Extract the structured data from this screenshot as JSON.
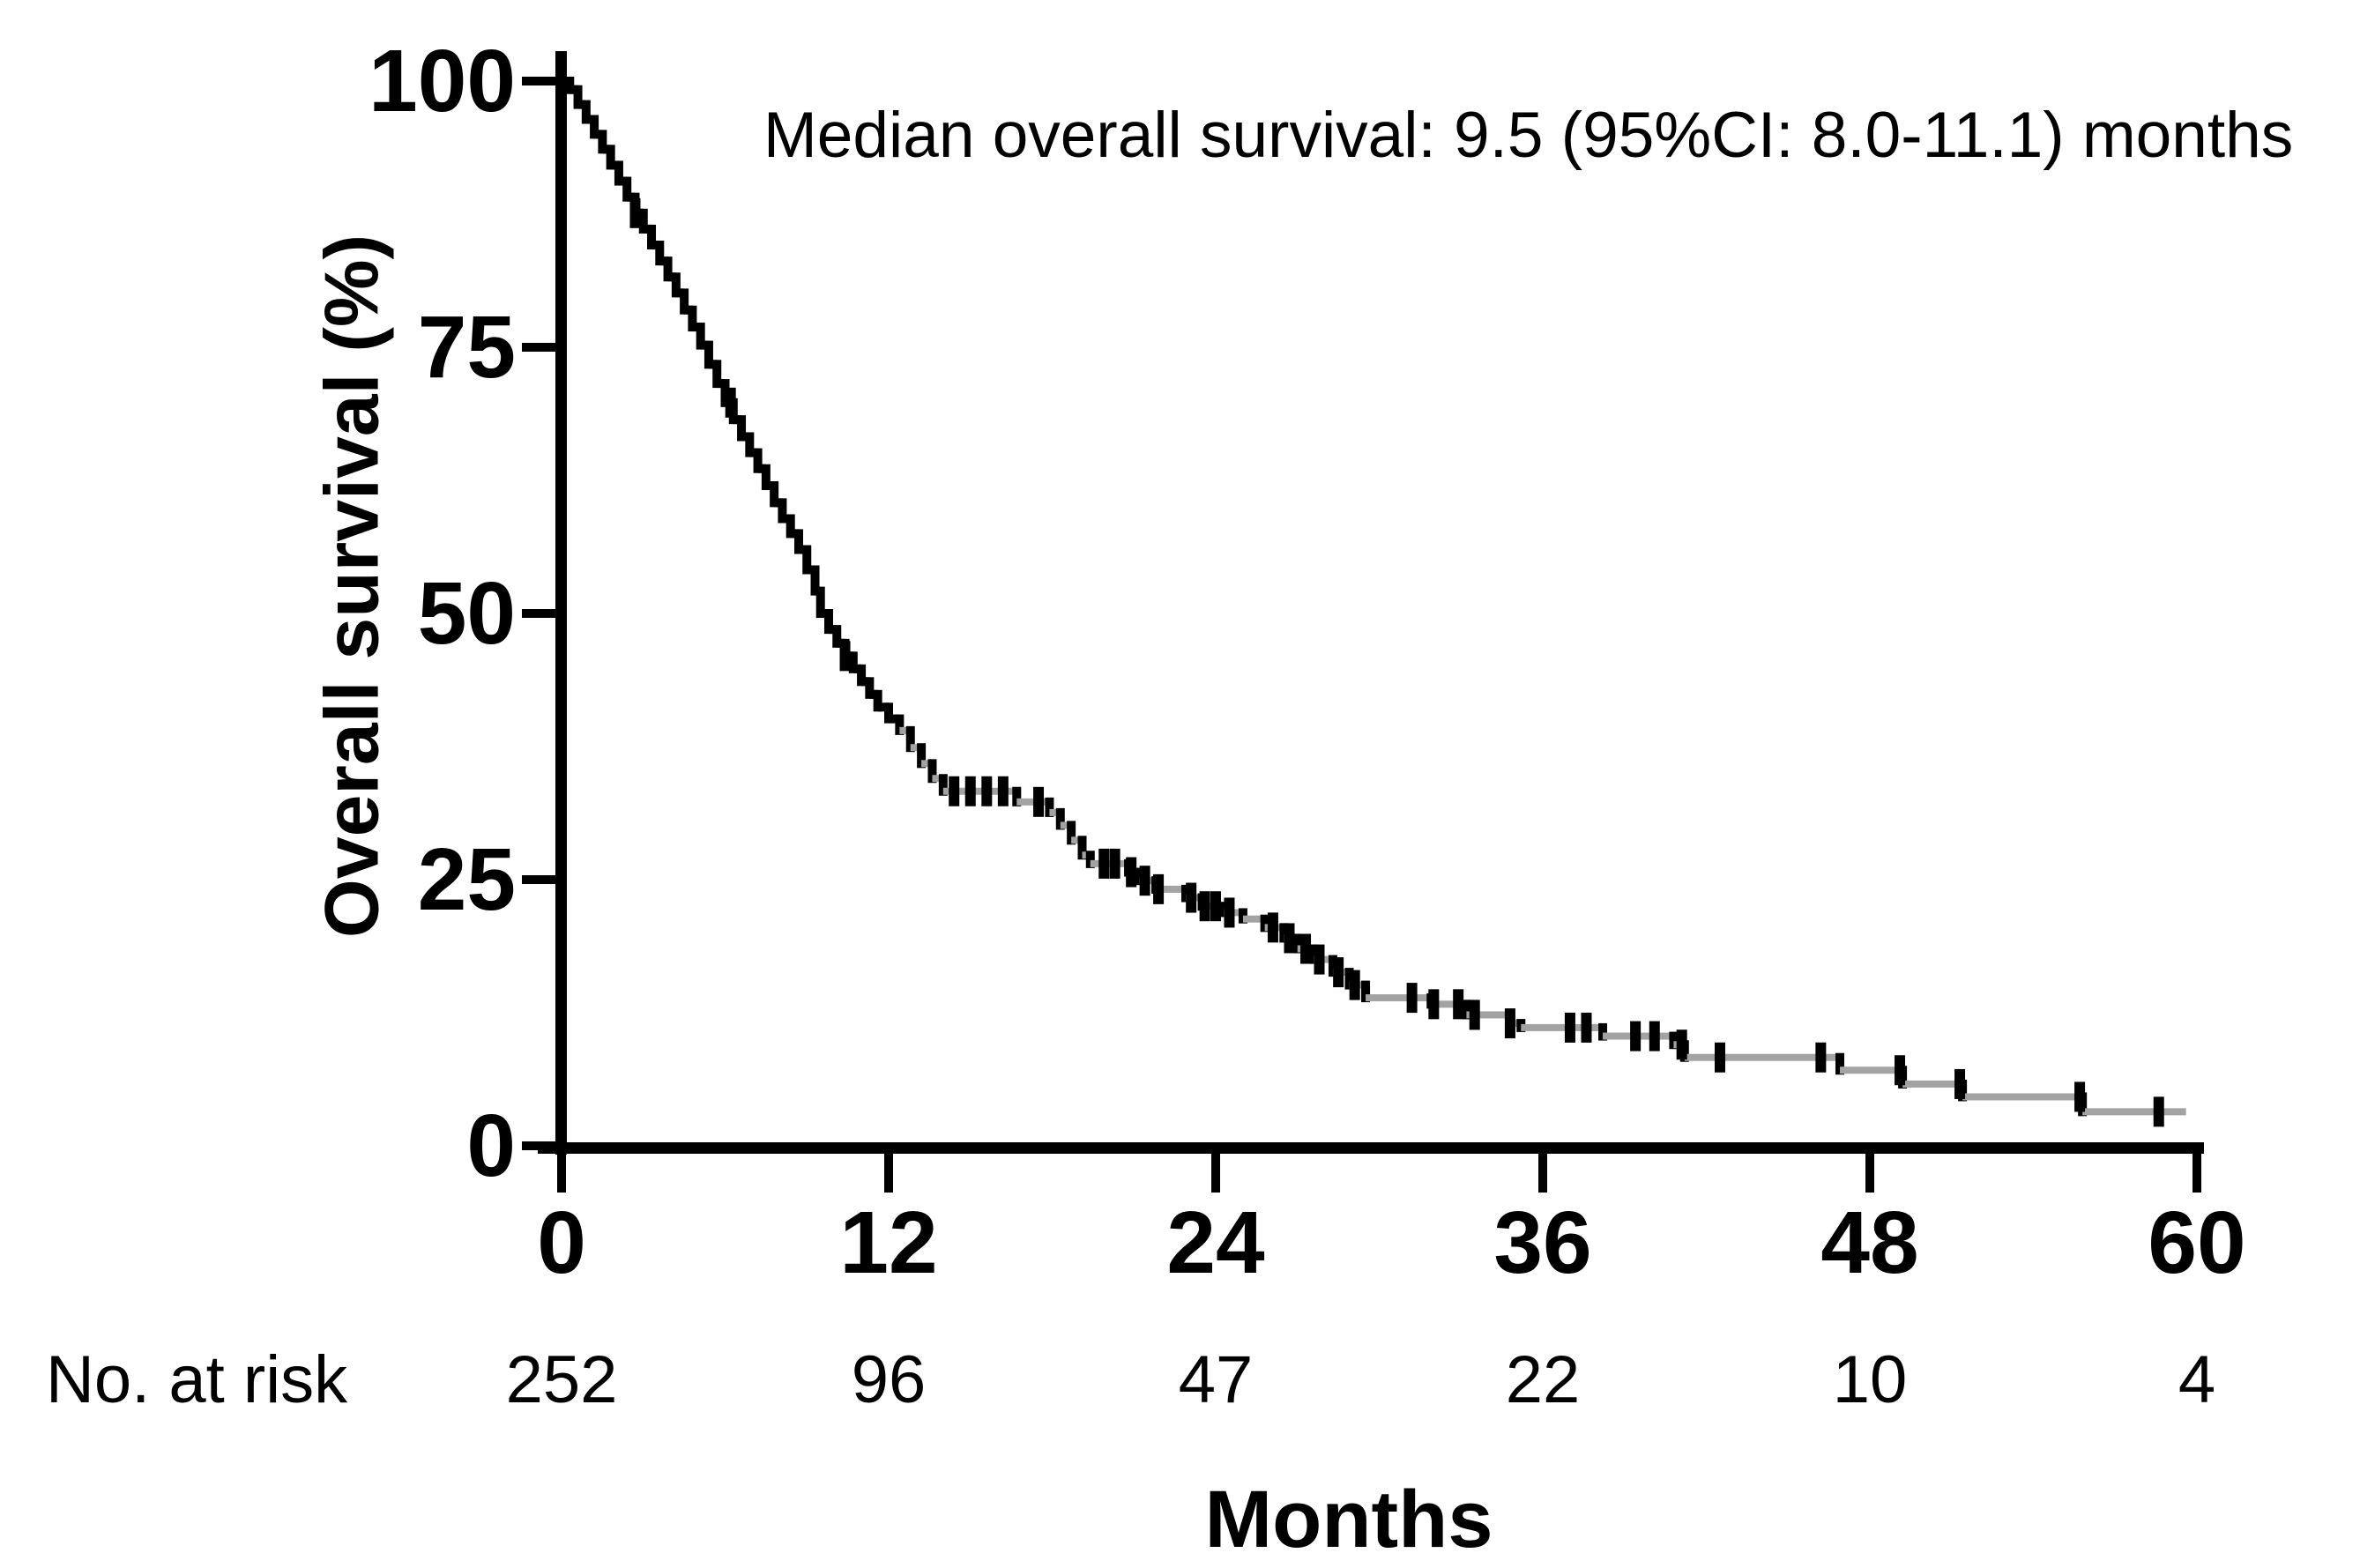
{
  "chart_data": {
    "type": "line",
    "subtype": "kaplan-meier-step-curve",
    "annotation": "Median overall survival: 9.5 (95%CI: 8.0-11.1) months",
    "median_overall_survival_months": 9.5,
    "ci95": "8.0-11.1",
    "xlabel": "Months",
    "ylabel": "Overall survival (%)",
    "xlim": [
      0,
      60
    ],
    "ylim": [
      0,
      100
    ],
    "x_ticks": [
      0,
      12,
      24,
      36,
      48,
      60
    ],
    "y_ticks": [
      100,
      75,
      50,
      25,
      0
    ],
    "grid": false,
    "legend": false,
    "colors": {
      "axis": "#000000",
      "curve_black": "#000000",
      "curve_plateau_gray": "#a3a3a3",
      "text": "#000000",
      "background": "#ffffff"
    },
    "series": [
      {
        "name": "Overall survival",
        "points": [
          [
            0,
            100
          ],
          [
            0.3,
            99.2
          ],
          [
            0.6,
            97.8
          ],
          [
            0.9,
            96.4
          ],
          [
            1.2,
            95.0
          ],
          [
            1.5,
            93.6
          ],
          [
            1.8,
            92.1
          ],
          [
            2.1,
            90.6
          ],
          [
            2.4,
            89.1
          ],
          [
            2.7,
            87.6
          ],
          [
            3.0,
            86.1
          ],
          [
            3.3,
            84.6
          ],
          [
            3.6,
            83.1
          ],
          [
            3.9,
            81.6
          ],
          [
            4.2,
            80.1
          ],
          [
            4.5,
            78.5
          ],
          [
            4.8,
            76.9
          ],
          [
            5.1,
            75.2
          ],
          [
            5.4,
            73.4
          ],
          [
            5.7,
            71.6
          ],
          [
            6.0,
            69.8
          ],
          [
            6.3,
            68.2
          ],
          [
            6.6,
            66.6
          ],
          [
            6.9,
            65.1
          ],
          [
            7.2,
            63.6
          ],
          [
            7.5,
            62.0
          ],
          [
            7.8,
            60.4
          ],
          [
            8.1,
            58.9
          ],
          [
            8.4,
            57.5
          ],
          [
            8.7,
            56.0
          ],
          [
            9.0,
            54.1
          ],
          [
            9.3,
            52.1
          ],
          [
            9.5,
            50.0
          ],
          [
            9.8,
            48.5
          ],
          [
            10.1,
            47.2
          ],
          [
            10.4,
            46.0
          ],
          [
            10.7,
            44.8
          ],
          [
            11.0,
            43.6
          ],
          [
            11.3,
            42.4
          ],
          [
            11.6,
            41.2
          ],
          [
            12.0,
            40.1
          ],
          [
            12.4,
            39.0
          ],
          [
            12.8,
            37.4
          ],
          [
            13.2,
            35.9
          ],
          [
            13.6,
            34.5
          ],
          [
            14.0,
            33.3
          ],
          [
            16.7,
            32.3
          ],
          [
            17.9,
            31.3
          ],
          [
            18.3,
            30.1
          ],
          [
            18.7,
            28.7
          ],
          [
            19.1,
            27.3
          ],
          [
            19.4,
            26.5
          ],
          [
            20.8,
            25.7
          ],
          [
            21.2,
            24.9
          ],
          [
            21.8,
            24.1
          ],
          [
            22.9,
            23.3
          ],
          [
            23.5,
            22.5
          ],
          [
            24.3,
            21.9
          ],
          [
            25.0,
            21.3
          ],
          [
            25.8,
            20.5
          ],
          [
            26.5,
            19.5
          ],
          [
            27.0,
            18.5
          ],
          [
            27.6,
            17.5
          ],
          [
            28.3,
            16.3
          ],
          [
            28.9,
            15.1
          ],
          [
            29.5,
            13.9
          ],
          [
            31.9,
            13.3
          ],
          [
            33.2,
            12.3
          ],
          [
            34.8,
            11.5
          ],
          [
            35.2,
            11.1
          ],
          [
            38.2,
            10.3
          ],
          [
            40.8,
            9.5
          ],
          [
            41.2,
            8.3
          ],
          [
            46.9,
            7.1
          ],
          [
            49.2,
            5.8
          ],
          [
            51.4,
            4.6
          ],
          [
            55.8,
            3.2
          ],
          [
            59.6,
            3.2
          ]
        ],
        "censor_marks_months": [
          2.7,
          6.2,
          10.4,
          14.4,
          15.0,
          15.6,
          16.2,
          17.5,
          19.9,
          20.3,
          20.9,
          21.4,
          21.9,
          23.1,
          23.6,
          24.0,
          24.5,
          26.1,
          26.7,
          27.3,
          27.8,
          28.5,
          29.1,
          31.2,
          32.0,
          32.9,
          33.5,
          34.8,
          37.0,
          37.6,
          39.4,
          40.1,
          41.1,
          42.5,
          46.2,
          49.1,
          51.3,
          55.7,
          58.6
        ]
      }
    ],
    "risk_table": {
      "label": "No. at risk",
      "times": [
        0,
        12,
        24,
        36,
        48,
        60
      ],
      "counts": [
        252,
        96,
        47,
        22,
        10,
        4
      ]
    }
  }
}
